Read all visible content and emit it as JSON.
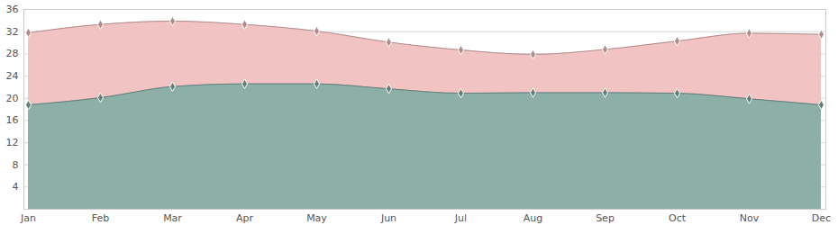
{
  "chart_data": {
    "type": "area",
    "categories": [
      "Jan",
      "Feb",
      "Mar",
      "Apr",
      "May",
      "Jun",
      "Jul",
      "Aug",
      "Sep",
      "Oct",
      "Nov",
      "Dec"
    ],
    "series": [
      {
        "color": "#f2c3c3",
        "marker": "diamond",
        "values": [
          31.8,
          33.3,
          33.9,
          33.3,
          32.1,
          30.1,
          28.7,
          27.9,
          28.8,
          30.3,
          31.7,
          31.5
        ]
      },
      {
        "color": "#8cafa8",
        "marker": "diamond",
        "values": [
          18.8,
          20.1,
          22.1,
          22.6,
          22.6,
          21.7,
          20.9,
          21.0,
          21.0,
          20.9,
          19.9,
          18.8
        ]
      }
    ],
    "ylim": [
      0,
      36
    ],
    "yticks": [
      4,
      8,
      12,
      16,
      20,
      24,
      28,
      32,
      36
    ],
    "grid": true
  }
}
